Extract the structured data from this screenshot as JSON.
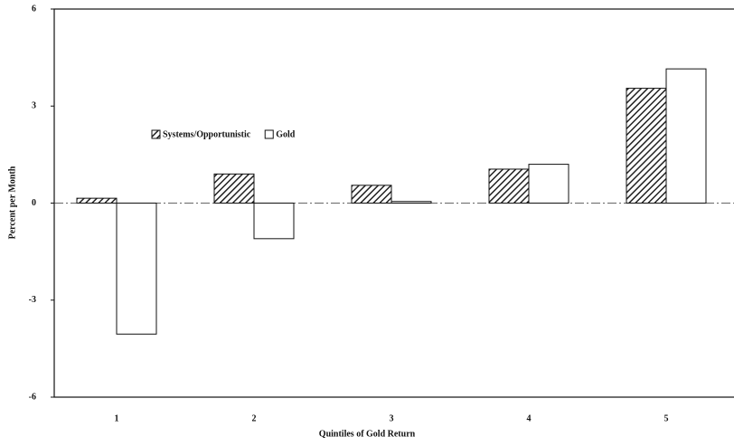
{
  "chart_data": {
    "type": "bar",
    "x_label": "Quintiles of Gold Return",
    "y_label": "Percent per Month",
    "categories": [
      "1",
      "2",
      "3",
      "4",
      "5"
    ],
    "series": [
      {
        "name": "Systems/Opportunistic",
        "color": "#222222",
        "hatch": true,
        "values": [
          0.15,
          0.9,
          0.55,
          1.05,
          3.55
        ]
      },
      {
        "name": "Gold",
        "color": "#ffffff",
        "hatch": false,
        "values": [
          -4.05,
          -1.1,
          0.05,
          1.2,
          4.15
        ]
      }
    ],
    "ylim": [
      -6,
      6
    ],
    "yticks": [
      -6,
      -3,
      0,
      3,
      6
    ],
    "grid": false,
    "legend": "upper left"
  }
}
